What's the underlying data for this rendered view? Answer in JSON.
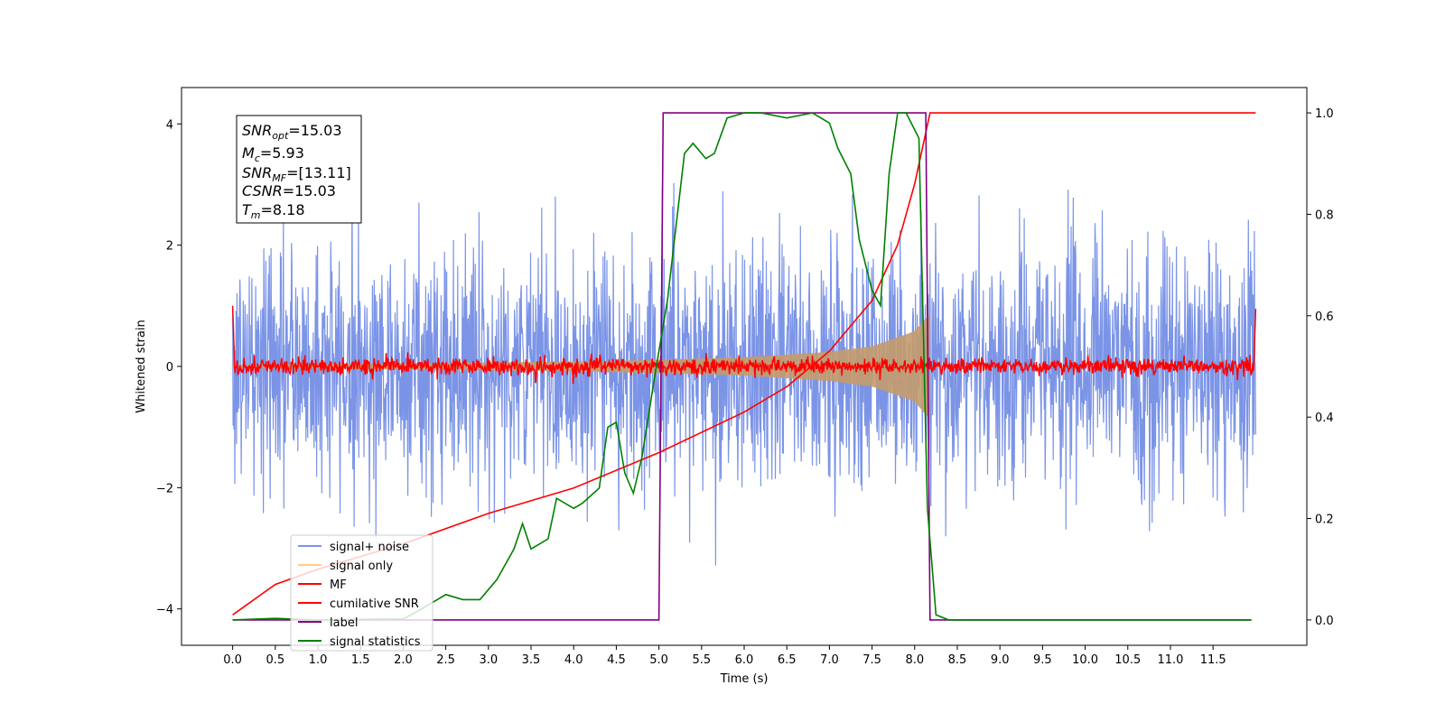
{
  "chart_data": {
    "type": "line",
    "xlabel": "Time (s)",
    "ylabel": "Whitened strain",
    "x_ticks": [
      "0.0",
      "0.5",
      "1.0",
      "1.5",
      "2.0",
      "2.5",
      "3.0",
      "3.5",
      "4.0",
      "4.5",
      "5.0",
      "5.5",
      "6.0",
      "6.5",
      "7.0",
      "7.5",
      "8.0",
      "8.5",
      "9.0",
      "9.5",
      "10.0",
      "10.5",
      "11.0",
      "11.5"
    ],
    "y_left_ticks": [
      "−4",
      "−2",
      "0",
      "2",
      "4"
    ],
    "y_right_ticks": [
      "0.0",
      "0.2",
      "0.4",
      "0.6",
      "0.8",
      "1.0"
    ],
    "xlim": [
      -0.6,
      12.6
    ],
    "ylim_left": [
      -4.6,
      4.6
    ],
    "ylim_right": [
      -0.05,
      1.05
    ],
    "legend_placement": "lower-left",
    "info_box": {
      "snr_opt": "=15.03",
      "mc": "=5.93",
      "snr_mf": "=[13.11]",
      "csnr": "=15.03",
      "tm": "=8.18"
    },
    "series": [
      {
        "name": "signal+ noise",
        "color": "#7b94e6",
        "axis": "left",
        "range": [
          0,
          12.0
        ],
        "amplitude_std": 1.0
      },
      {
        "name": "signal only",
        "color": "#c49a6c",
        "axis": "left",
        "envelope": {
          "x": [
            0,
            2,
            4,
            5,
            6,
            7,
            7.5,
            8.0,
            8.1,
            8.18
          ],
          "amp": [
            0.03,
            0.05,
            0.08,
            0.11,
            0.15,
            0.24,
            0.33,
            0.58,
            0.75,
            0.85
          ]
        }
      },
      {
        "name": "MF",
        "color": "#ff0000",
        "axis": "left",
        "range": [
          0,
          12.0
        ],
        "amplitude_std": 0.07
      },
      {
        "name": "cumilative SNR",
        "color": "#ff0000",
        "axis": "right",
        "points": [
          [
            0,
            0.01
          ],
          [
            0.5,
            0.07
          ],
          [
            1,
            0.1
          ],
          [
            2,
            0.15
          ],
          [
            3,
            0.21
          ],
          [
            4,
            0.26
          ],
          [
            5,
            0.33
          ],
          [
            6,
            0.41
          ],
          [
            6.5,
            0.46
          ],
          [
            7,
            0.53
          ],
          [
            7.5,
            0.63
          ],
          [
            7.8,
            0.74
          ],
          [
            8.0,
            0.86
          ],
          [
            8.18,
            1.0
          ],
          [
            12.0,
            1.0
          ]
        ]
      },
      {
        "name": "label",
        "color": "#800080",
        "axis": "right",
        "points": [
          [
            0,
            0
          ],
          [
            5.0,
            0
          ],
          [
            5.05,
            1
          ],
          [
            8.13,
            1
          ],
          [
            8.18,
            0
          ],
          [
            11.95,
            0
          ]
        ]
      },
      {
        "name": "signal statistics",
        "color": "#008000",
        "axis": "right",
        "points": [
          [
            0,
            0
          ],
          [
            0.5,
            0.003
          ],
          [
            1.0,
            0
          ],
          [
            1.5,
            0.001
          ],
          [
            2.0,
            0.002
          ],
          [
            2.2,
            0.02
          ],
          [
            2.4,
            0.04
          ],
          [
            2.5,
            0.05
          ],
          [
            2.7,
            0.04
          ],
          [
            2.9,
            0.04
          ],
          [
            3.1,
            0.08
          ],
          [
            3.3,
            0.14
          ],
          [
            3.4,
            0.19
          ],
          [
            3.5,
            0.14
          ],
          [
            3.7,
            0.16
          ],
          [
            3.8,
            0.24
          ],
          [
            4.0,
            0.22
          ],
          [
            4.1,
            0.23
          ],
          [
            4.3,
            0.26
          ],
          [
            4.4,
            0.38
          ],
          [
            4.5,
            0.39
          ],
          [
            4.6,
            0.29
          ],
          [
            4.7,
            0.25
          ],
          [
            4.8,
            0.32
          ],
          [
            4.95,
            0.48
          ],
          [
            5.1,
            0.63
          ],
          [
            5.3,
            0.92
          ],
          [
            5.4,
            0.94
          ],
          [
            5.55,
            0.91
          ],
          [
            5.65,
            0.92
          ],
          [
            5.8,
            0.99
          ],
          [
            6.0,
            1.0
          ],
          [
            6.2,
            1.0
          ],
          [
            6.5,
            0.99
          ],
          [
            6.8,
            1.0
          ],
          [
            7.0,
            0.98
          ],
          [
            7.1,
            0.93
          ],
          [
            7.25,
            0.88
          ],
          [
            7.35,
            0.75
          ],
          [
            7.5,
            0.65
          ],
          [
            7.6,
            0.62
          ],
          [
            7.7,
            0.88
          ],
          [
            7.8,
            1.0
          ],
          [
            7.9,
            1.0
          ],
          [
            8.05,
            0.95
          ],
          [
            8.15,
            0.22
          ],
          [
            8.25,
            0.01
          ],
          [
            8.4,
            0
          ],
          [
            11.95,
            0
          ]
        ]
      }
    ]
  }
}
